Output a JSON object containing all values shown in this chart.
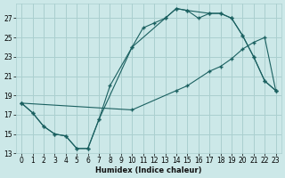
{
  "xlabel": "Humidex (Indice chaleur)",
  "bg_color": "#cce8e8",
  "grid_color": "#aacfcf",
  "line_color": "#1a6060",
  "xlim": [
    -0.5,
    23.5
  ],
  "ylim": [
    13,
    28.5
  ],
  "xticks": [
    0,
    1,
    2,
    3,
    4,
    5,
    6,
    7,
    8,
    9,
    10,
    11,
    12,
    13,
    14,
    15,
    16,
    17,
    18,
    19,
    20,
    21,
    22,
    23
  ],
  "yticks": [
    13,
    15,
    17,
    19,
    21,
    23,
    25,
    27
  ],
  "line1_x": [
    0,
    1,
    2,
    3,
    4,
    5,
    6,
    7,
    8,
    10,
    11,
    12,
    13,
    14,
    15,
    16,
    17,
    18,
    19,
    20,
    21,
    22,
    23
  ],
  "line1_y": [
    18.2,
    17.2,
    15.8,
    15.0,
    14.8,
    13.5,
    13.5,
    16.5,
    20.0,
    24.0,
    26.0,
    26.5,
    27.0,
    28.0,
    27.8,
    27.0,
    27.5,
    27.5,
    27.0,
    25.2,
    23.0,
    20.5,
    19.5
  ],
  "line2_x": [
    0,
    1,
    2,
    3,
    4,
    5,
    6,
    7,
    10,
    13,
    14,
    15,
    17,
    18,
    19,
    20,
    21,
    22,
    23
  ],
  "line2_y": [
    18.2,
    17.2,
    15.8,
    15.0,
    14.8,
    13.5,
    13.5,
    16.5,
    24.0,
    27.0,
    28.0,
    27.8,
    27.5,
    27.5,
    27.0,
    25.2,
    23.0,
    20.5,
    19.5
  ],
  "line3_x": [
    0,
    10,
    14,
    15,
    17,
    18,
    19,
    20,
    21,
    22,
    23
  ],
  "line3_y": [
    18.2,
    17.5,
    19.5,
    20.0,
    21.5,
    22.0,
    22.8,
    23.8,
    24.5,
    25.0,
    19.5
  ]
}
